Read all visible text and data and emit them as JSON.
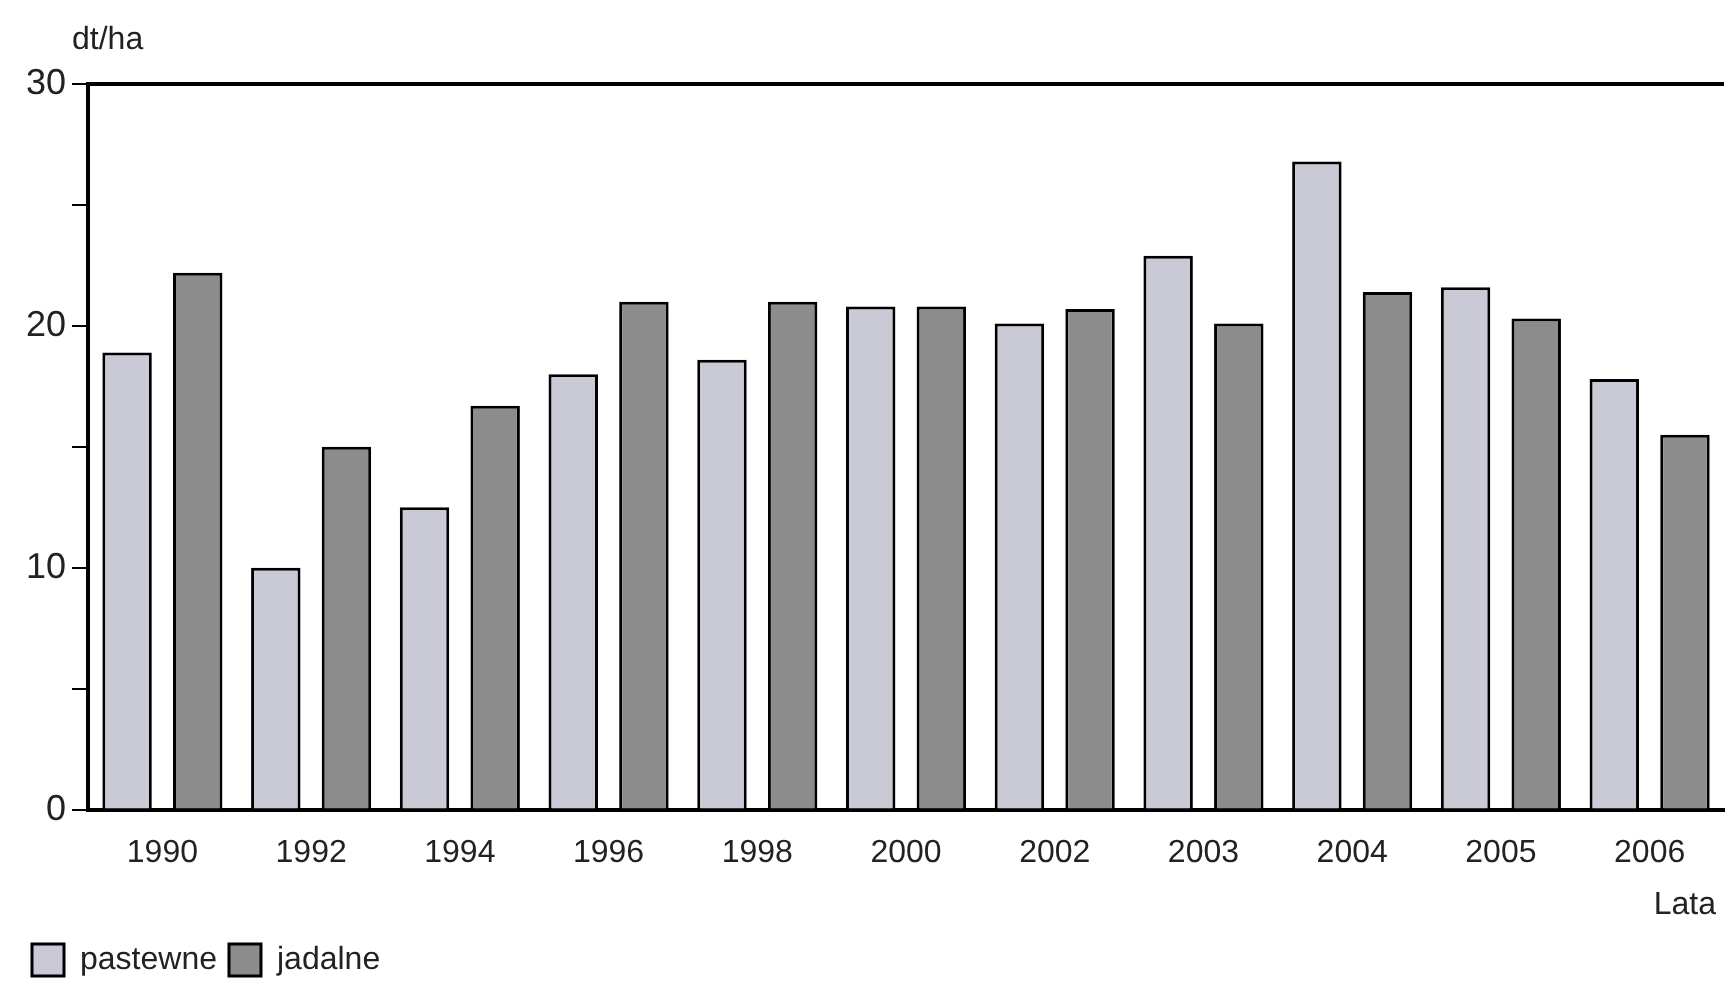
{
  "chart_data": {
    "type": "bar",
    "ylabel": "dt/ha",
    "xlabel": "Lata",
    "categories": [
      "1990",
      "1992",
      "1994",
      "1996",
      "1998",
      "2000",
      "2002",
      "2003",
      "2004",
      "2005",
      "2006"
    ],
    "series": [
      {
        "name": "pastewne",
        "color": "#c9cad6",
        "values": [
          18.9,
          10,
          12.5,
          18,
          18.6,
          20.8,
          20.1,
          22.9,
          26.8,
          21.6,
          17.8
        ]
      },
      {
        "name": "jadalne",
        "color": "#8c8c8c",
        "values": [
          22.2,
          15,
          16.7,
          21,
          21,
          20.8,
          20.7,
          20.1,
          21.4,
          20.3,
          15.5
        ]
      }
    ],
    "ylim": [
      0,
      30
    ],
    "yticks": [
      0,
      {
        "value": 5,
        "label": null
      },
      10,
      {
        "value": 15,
        "label": null
      },
      20,
      {
        "value": 25,
        "label": null
      },
      30
    ],
    "grid": false,
    "legend": "bottom left"
  }
}
